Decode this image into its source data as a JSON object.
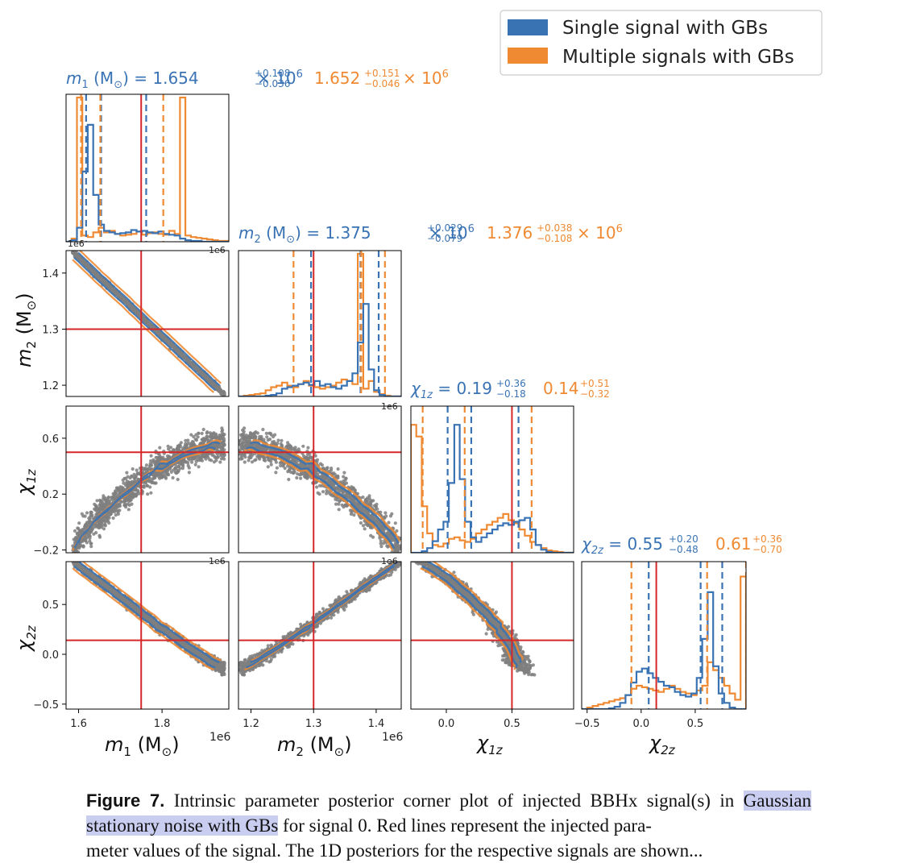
{
  "legend": {
    "single": "Single signal with GBs",
    "multiple": "Multiple signals with GBs"
  },
  "colors": {
    "single": "#3a73b4",
    "multiple": "#ef8a33",
    "truth": "#d62728",
    "scatter": "#7f7f7f"
  },
  "panel_titles": {
    "m1": {
      "label": "m",
      "sub": "1",
      "unit": " (M",
      "unit_sub": "⊙",
      "close": ") = ",
      "blue": "1.654",
      "blue_up": "+0.108",
      "blue_dn": "−0.036",
      "blue_pow": "× 10",
      "blue_exp": "6",
      "orange": "1.652",
      "orange_up": "+0.151",
      "orange_dn": "−0.046",
      "orange_pow": "× 10",
      "orange_exp": "6"
    },
    "m2": {
      "label": "m",
      "sub": "2",
      "unit": " (M",
      "unit_sub": "⊙",
      "close": ") = ",
      "blue": "1.375",
      "blue_up": "+0.029",
      "blue_dn": "−0.079",
      "blue_pow": "× 10",
      "blue_exp": "6",
      "orange": "1.376",
      "orange_up": "+0.038",
      "orange_dn": "−0.108",
      "orange_pow": "× 10",
      "orange_exp": "6"
    },
    "chi1z": {
      "label": "χ",
      "sub": "1z",
      "close": " = ",
      "blue": "0.19",
      "blue_up": "+0.36",
      "blue_dn": "−0.18",
      "orange": "0.14",
      "orange_up": "+0.51",
      "orange_dn": "−0.32"
    },
    "chi2z": {
      "label": "χ",
      "sub": "2z",
      "close": " = ",
      "blue": "0.55",
      "blue_up": "+0.20",
      "blue_dn": "−0.48",
      "orange": "0.61",
      "orange_up": "+0.36",
      "orange_dn": "−0.70"
    }
  },
  "axes": {
    "m1": {
      "label": "m",
      "sub": "1",
      "unit": " (M",
      "unit_sub": "⊙",
      "unit_close": ")",
      "offset": "1e6",
      "ticks": [
        "1.6",
        "1.8"
      ]
    },
    "m2": {
      "label": "m",
      "sub": "2",
      "unit": " (M",
      "unit_sub": "⊙",
      "unit_close": ")",
      "offset": "1e6",
      "ticks": [
        "1.2",
        "1.3",
        "1.4"
      ]
    },
    "chi1z": {
      "label": "χ",
      "sub": "1z",
      "ticks": [
        "0.0",
        "0.5"
      ],
      "yticks": [
        "0.6",
        "0.2",
        "−0.2"
      ]
    },
    "chi2z": {
      "label": "χ",
      "sub": "2z",
      "ticks": [
        "−0.5",
        "0.0",
        "0.5"
      ],
      "yticks": [
        "0.5",
        "0.0",
        "−0.5"
      ]
    },
    "top_offset_label": "1e6"
  },
  "chart_data": {
    "type": "corner",
    "parameters": [
      "m1",
      "m2",
      "chi1z",
      "chi2z"
    ],
    "injected": {
      "m1": 1.75,
      "m2": 1.3,
      "chi1z": 0.5,
      "chi2z": 0.14
    },
    "quantiles": {
      "single": {
        "m1": [
          1.618,
          1.654,
          1.762
        ],
        "m2": [
          1.296,
          1.375,
          1.404
        ],
        "chi1z": [
          0.01,
          0.19,
          0.55
        ],
        "chi2z": [
          0.07,
          0.55,
          0.75
        ]
      },
      "multiple": {
        "m1": [
          1.606,
          1.652,
          1.803
        ],
        "m2": [
          1.268,
          1.376,
          1.414
        ],
        "chi1z": [
          -0.18,
          0.14,
          0.65
        ],
        "chi2z": [
          -0.09,
          0.61,
          0.97
        ]
      }
    },
    "series": [
      {
        "name": "Single signal with GBs"
      },
      {
        "name": "Multiple signals with GBs"
      }
    ]
  },
  "caption": {
    "label": "Figure 7.",
    "text1": " Intrinsic parameter posterior corner plot of injected BBHx signal(s) in ",
    "highlight": "Gaussian stationary noise with GBs",
    "text2": " for signal 0. Red lines represent the injected para-",
    "line3": "meter values of the signal. The 1D posteriors for the respective signals are shown..."
  }
}
